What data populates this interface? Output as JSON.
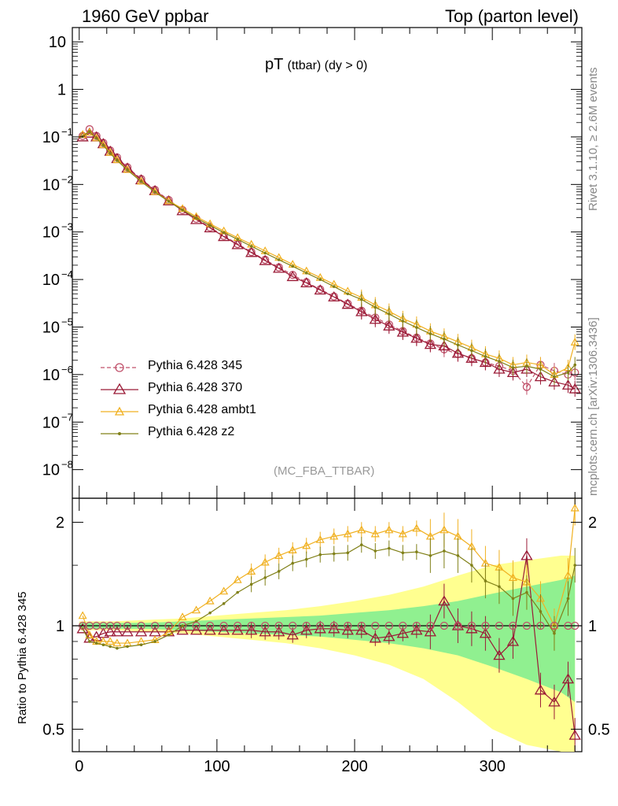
{
  "header": {
    "left": "1960 GeV ppbar",
    "right": "Top (parton level)"
  },
  "plot_title": {
    "main": "pT",
    "sub": "(ttbar) (dy > 0)"
  },
  "side_labels": {
    "rivet": "Rivet 3.1.10, ≥ 2.6M events",
    "mcplots": "mcplots.cern.ch [arXiv:1306.3436]"
  },
  "analysis_label": "(MC_FBA_TTBAR)",
  "ratio_ylabel": "Ratio to Pythia 6.428 345",
  "colors": {
    "p345": "#c0506a",
    "p370": "#9a1a36",
    "ambt1": "#f0b020",
    "z2": "#808018",
    "band_green": "#90f090",
    "band_yellow": "#ffff90"
  },
  "chart_data": [
    {
      "type": "line",
      "panel": "main",
      "yscale": "log",
      "xlim": [
        -5,
        365
      ],
      "ylim": [
        2.5e-09,
        20
      ],
      "y_ticks": [
        {
          "v": 10,
          "label": "10"
        },
        {
          "v": 1,
          "label": "1"
        },
        {
          "v": 0.1,
          "label": "10",
          "exp": "−1"
        },
        {
          "v": 0.01,
          "label": "10",
          "exp": "−2"
        },
        {
          "v": 0.001,
          "label": "10",
          "exp": "−3"
        },
        {
          "v": 0.0001,
          "label": "10",
          "exp": "−4"
        },
        {
          "v": 1e-05,
          "label": "10",
          "exp": "−5"
        },
        {
          "v": 1e-06,
          "label": "10",
          "exp": "−6"
        },
        {
          "v": 1e-07,
          "label": "10",
          "exp": "−7"
        },
        {
          "v": 1e-08,
          "label": "10",
          "exp": "−8"
        }
      ],
      "legend_position": "bottom-left",
      "x": [
        2.5,
        7.5,
        12.5,
        17.5,
        22.5,
        27.5,
        35,
        45,
        55,
        65,
        75,
        85,
        95,
        105,
        115,
        125,
        135,
        145,
        155,
        165,
        175,
        185,
        195,
        205,
        215,
        225,
        235,
        245,
        255,
        265,
        275,
        285,
        295,
        305,
        315,
        325,
        335,
        345,
        355,
        360
      ],
      "series": [
        {
          "name": "Pythia 6.428 345",
          "key": "p345",
          "style": "dashed",
          "marker": "circle",
          "values": [
            0.105,
            0.145,
            0.105,
            0.075,
            0.052,
            0.037,
            0.023,
            0.013,
            0.0077,
            0.0047,
            0.0029,
            0.0019,
            0.00125,
            0.00083,
            0.00056,
            0.00038,
            0.00026,
            0.00018,
            0.000125,
            8.8e-05,
            6.2e-05,
            4.4e-05,
            3.1e-05,
            2.2e-05,
            1.58e-05,
            1.13e-05,
            8.2e-06,
            6e-06,
            4.5e-06,
            3.4e-06,
            2.7e-06,
            2.2e-06,
            1.8e-06,
            1.5e-06,
            1.2e-06,
            5.5e-07,
            1.6e-06,
            1.2e-06,
            1e-06,
            1.1e-06
          ]
        },
        {
          "name": "Pythia 6.428 370",
          "key": "p370",
          "style": "solid",
          "marker": "triangle",
          "values": [
            0.1,
            0.12,
            0.1,
            0.072,
            0.05,
            0.035,
            0.022,
            0.0125,
            0.0074,
            0.0045,
            0.0028,
            0.00182,
            0.00122,
            0.0008,
            0.00054,
            0.00037,
            0.00025,
            0.000172,
            0.000115,
            8.5e-05,
            6e-05,
            4.3e-05,
            3e-05,
            2.1e-05,
            1.45e-05,
            1.05e-05,
            7.8e-06,
            5.8e-06,
            4.3e-06,
            4e-06,
            2.8e-06,
            2.2e-06,
            1.8e-06,
            1.3e-06,
            1.1e-06,
            1.3e-06,
            9e-07,
            7e-07,
            6e-07,
            5e-07
          ]
        },
        {
          "name": "Pythia 6.428 ambt1",
          "key": "ambt1",
          "style": "solid",
          "marker": "triangle-small",
          "values": [
            0.112,
            0.125,
            0.095,
            0.068,
            0.047,
            0.033,
            0.0205,
            0.0117,
            0.007,
            0.0045,
            0.0031,
            0.0021,
            0.00148,
            0.00105,
            0.00076,
            0.00055,
            0.0004,
            0.00029,
            0.000208,
            0.000151,
            0.00011,
            7.92e-05,
            5.67e-05,
            4.2e-05,
            2.92e-05,
            2.14e-05,
            1.5e-05,
            1.14e-05,
            8.2e-06,
            6.4e-06,
            4.9e-06,
            3.7e-06,
            2.7e-06,
            2.2e-06,
            1.6e-06,
            1.8e-06,
            1.6e-06,
            1e-06,
            1.4e-06,
            4.8e-06
          ]
        },
        {
          "name": "Pythia 6.428 z2",
          "key": "z2",
          "style": "solid",
          "marker": "dot",
          "values": [
            0.103,
            0.13,
            0.094,
            0.066,
            0.045,
            0.032,
            0.0201,
            0.0115,
            0.0069,
            0.0044,
            0.0029,
            0.00196,
            0.00137,
            0.00097,
            0.0007,
            0.0005,
            0.00036,
            0.00026,
            0.00019,
            0.000137,
            0.0001,
            7.1e-05,
            5e-05,
            3.8e-05,
            2.6e-05,
            1.88e-05,
            1.33e-05,
            9.8e-06,
            7.2e-06,
            5.6e-06,
            4.2e-06,
            3.2e-06,
            2.4e-06,
            1.9e-06,
            1.4e-06,
            1.5e-06,
            1.3e-06,
            9e-07,
            1.1e-06,
            1.6e-06
          ]
        }
      ]
    },
    {
      "type": "line",
      "panel": "ratio",
      "yscale": "log",
      "xlim": [
        -5,
        365
      ],
      "ylim": [
        0.43,
        2.35
      ],
      "ylabel": "Ratio to Pythia 6.428 345",
      "y_ticks": [
        {
          "v": 0.5,
          "label": "0.5"
        },
        {
          "v": 1,
          "label": "1"
        },
        {
          "v": 2,
          "label": "2"
        }
      ],
      "x_ticks": [
        {
          "v": 0,
          "label": "0"
        },
        {
          "v": 100,
          "label": "100"
        },
        {
          "v": 200,
          "label": "200"
        },
        {
          "v": 300,
          "label": "300"
        }
      ],
      "x": [
        2.5,
        7.5,
        12.5,
        17.5,
        22.5,
        27.5,
        35,
        45,
        55,
        65,
        75,
        85,
        95,
        105,
        115,
        125,
        135,
        145,
        155,
        165,
        175,
        185,
        195,
        205,
        215,
        225,
        235,
        245,
        255,
        265,
        275,
        285,
        295,
        305,
        315,
        325,
        335,
        345,
        355,
        360
      ],
      "band": {
        "x": [
          0,
          25,
          50,
          75,
          100,
          125,
          150,
          175,
          200,
          225,
          250,
          275,
          300,
          325,
          350,
          360
        ],
        "green": [
          0.02,
          0.02,
          0.02,
          0.03,
          0.04,
          0.05,
          0.06,
          0.07,
          0.09,
          0.11,
          0.14,
          0.18,
          0.24,
          0.3,
          0.36,
          0.4
        ],
        "yellow": [
          0.03,
          0.03,
          0.04,
          0.05,
          0.07,
          0.09,
          0.11,
          0.14,
          0.18,
          0.23,
          0.3,
          0.4,
          0.5,
          0.55,
          0.6,
          0.6
        ]
      },
      "series": [
        {
          "name": "Pythia 6.428 370",
          "key": "p370",
          "marker": "triangle",
          "values": [
            0.98,
            0.92,
            0.93,
            0.95,
            0.96,
            0.96,
            0.96,
            0.96,
            0.96,
            0.96,
            0.97,
            0.97,
            0.97,
            0.97,
            0.97,
            0.97,
            0.96,
            0.96,
            0.94,
            0.97,
            0.98,
            0.98,
            0.97,
            0.97,
            0.92,
            0.93,
            0.95,
            0.97,
            0.96,
            1.18,
            1.0,
            0.98,
            0.95,
            0.82,
            0.9,
            1.6,
            0.65,
            0.6,
            0.7,
            0.48
          ]
        },
        {
          "name": "Pythia 6.428 ambt1",
          "key": "ambt1",
          "marker": "triangle-small",
          "values": [
            1.07,
            0.94,
            0.9,
            0.9,
            0.9,
            0.89,
            0.89,
            0.9,
            0.91,
            0.96,
            1.06,
            1.11,
            1.18,
            1.26,
            1.36,
            1.44,
            1.53,
            1.6,
            1.66,
            1.71,
            1.78,
            1.82,
            1.85,
            1.9,
            1.85,
            1.9,
            1.85,
            1.92,
            1.82,
            1.9,
            1.82,
            1.7,
            1.52,
            1.48,
            1.38,
            1.34,
            1.2,
            1.0,
            1.4,
            2.2
          ]
        },
        {
          "name": "Pythia 6.428 z2",
          "key": "z2",
          "marker": "dot",
          "values": [
            0.98,
            0.9,
            0.89,
            0.88,
            0.87,
            0.86,
            0.87,
            0.88,
            0.9,
            0.94,
            1.0,
            1.03,
            1.09,
            1.16,
            1.25,
            1.32,
            1.38,
            1.44,
            1.52,
            1.56,
            1.61,
            1.62,
            1.63,
            1.72,
            1.65,
            1.68,
            1.63,
            1.64,
            1.6,
            1.65,
            1.6,
            1.5,
            1.35,
            1.3,
            1.2,
            1.25,
            1.1,
            0.95,
            1.2,
            1.5
          ]
        }
      ]
    }
  ]
}
